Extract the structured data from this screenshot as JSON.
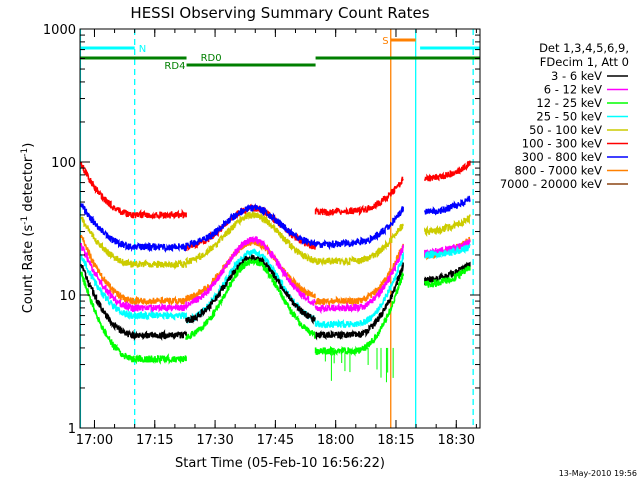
{
  "chart_data": {
    "type": "line",
    "title": "HESSI Observing Summary Count Rates",
    "xlabel": "Start Time (05-Feb-10 16:56:22)",
    "ylabel_main": "Count Rate (s",
    "ylabel_sup1": "-1",
    "ylabel_mid": " detector",
    "ylabel_sup2": "-1",
    "ylabel_end": ")",
    "yscale": "log",
    "ylim": [
      1,
      1000
    ],
    "xlim_minutes_after_start": [
      0,
      99.5
    ],
    "xticks": [
      {
        "label": "17:00",
        "t": 3.6
      },
      {
        "label": "17:15",
        "t": 18.6
      },
      {
        "label": "17:30",
        "t": 33.6
      },
      {
        "label": "17:45",
        "t": 48.6
      },
      {
        "label": "18:00",
        "t": 63.6
      },
      {
        "label": "18:15",
        "t": 78.6
      },
      {
        "label": "18:30",
        "t": 93.6
      }
    ],
    "yticks": [
      {
        "label": "1",
        "v": 1
      },
      {
        "label": "10",
        "v": 10
      },
      {
        "label": "100",
        "v": 100
      },
      {
        "label": "1000",
        "v": 1000
      }
    ],
    "legend_header": [
      "Det 1,3,4,5,6,9,",
      "FDecim 1, Att 0"
    ],
    "legend_position": "top-right",
    "series": [
      {
        "name": "3 - 6 keV",
        "color": "#000000"
      },
      {
        "name": "6 - 12 keV",
        "color": "#ff00ff"
      },
      {
        "name": "12 - 25 keV",
        "color": "#00ff00"
      },
      {
        "name": "25 - 50 keV",
        "color": "#00ffff"
      },
      {
        "name": "50 - 100 keV",
        "color": "#cccc00"
      },
      {
        "name": "100 - 300 keV",
        "color": "#ff0000"
      },
      {
        "name": "300 - 800 keV",
        "color": "#0000ff"
      },
      {
        "name": "800 - 7000 keV",
        "color": "#ff8000"
      },
      {
        "name": "7000 - 20000 keV",
        "color": "#8b4513"
      }
    ],
    "flags": [
      {
        "label": "N",
        "color": "#00ffff",
        "segments": [
          [
            0,
            13.6
          ],
          [
            84.6,
            99.5
          ]
        ]
      },
      {
        "label": "S",
        "color": "#ff8000",
        "segments": [
          [
            77.3,
            83.5
          ]
        ]
      },
      {
        "label": "RD0",
        "color": "#007f00",
        "segments": [
          [
            0,
            26.5
          ],
          [
            58.6,
            99.5
          ]
        ]
      },
      {
        "label": "RD4",
        "color": "#007f00",
        "segments": [
          [
            26.5,
            58.6
          ]
        ]
      }
    ],
    "markers": [
      {
        "t": 13.6,
        "color": "#00ffff",
        "style": "dashed"
      },
      {
        "t": 77.3,
        "color": "#ff8000",
        "style": "solid"
      },
      {
        "t": 83.5,
        "color": "#00ffff",
        "style": "solid"
      },
      {
        "t": 97.8,
        "color": "#00ffff",
        "style": "dashed"
      },
      {
        "t": 0.1,
        "color": "#00ffff",
        "style": "solid"
      }
    ],
    "bands": [
      {
        "name": "100 - 300 keV",
        "phases": [
          {
            "t0": 0.3,
            "t1": 13.6,
            "v0": 95,
            "v1": 40
          },
          {
            "t0": 13.6,
            "t1": 26.4,
            "v0": 40,
            "v1": 40
          },
          {
            "t0": 26.4,
            "t1": 58.6,
            "shape": "hump",
            "base": 22,
            "peak": 45,
            "peakT": 43
          },
          {
            "t0": 58.6,
            "t1": 68.5,
            "v0": 42,
            "v1": 43
          },
          {
            "t0": 68.5,
            "t1": 80.5,
            "v0": 43,
            "v1": 75
          },
          {
            "t0": 85.8,
            "t1": 97.0,
            "v0": 75,
            "v1": 97
          }
        ]
      },
      {
        "name": "300 - 800 keV",
        "phases": [
          {
            "t0": 0.3,
            "t1": 13.6,
            "v0": 48,
            "v1": 23
          },
          {
            "t0": 13.6,
            "t1": 26.4,
            "v0": 23,
            "v1": 23
          },
          {
            "t0": 26.4,
            "t1": 58.6,
            "shape": "hump",
            "base": 23,
            "peak": 45,
            "peakT": 43
          },
          {
            "t0": 58.6,
            "t1": 68.5,
            "v0": 24,
            "v1": 25
          },
          {
            "t0": 68.5,
            "t1": 80.5,
            "v0": 25,
            "v1": 45
          },
          {
            "t0": 85.8,
            "t1": 97.0,
            "v0": 42,
            "v1": 53
          }
        ]
      },
      {
        "name": "50 - 100 keV",
        "phases": [
          {
            "t0": 0.3,
            "t1": 13.6,
            "v0": 38,
            "v1": 17
          },
          {
            "t0": 13.6,
            "t1": 26.4,
            "v0": 17,
            "v1": 17
          },
          {
            "t0": 26.4,
            "t1": 58.6,
            "shape": "hump",
            "base": 17,
            "peak": 40,
            "peakT": 43
          },
          {
            "t0": 58.6,
            "t1": 68.5,
            "v0": 18,
            "v1": 18
          },
          {
            "t0": 68.5,
            "t1": 80.5,
            "v0": 18,
            "v1": 35
          },
          {
            "t0": 85.8,
            "t1": 97.0,
            "v0": 30,
            "v1": 38
          }
        ]
      },
      {
        "name": "800 - 7000 keV",
        "phases": [
          {
            "t0": 0.3,
            "t1": 13.6,
            "v0": 28,
            "v1": 9
          },
          {
            "t0": 13.6,
            "t1": 26.4,
            "v0": 9,
            "v1": 9
          },
          {
            "t0": 26.4,
            "t1": 58.6,
            "shape": "hump",
            "base": 9,
            "peak": 25,
            "peakT": 43
          },
          {
            "t0": 58.6,
            "t1": 68.5,
            "v0": 9,
            "v1": 9
          },
          {
            "t0": 68.5,
            "t1": 80.5,
            "v0": 9,
            "v1": 24
          },
          {
            "t0": 85.8,
            "t1": 97.0,
            "v0": 20,
            "v1": 26
          }
        ]
      },
      {
        "name": "6 - 12 keV",
        "phases": [
          {
            "t0": 0.3,
            "t1": 13.6,
            "v0": 24,
            "v1": 8
          },
          {
            "t0": 13.6,
            "t1": 26.4,
            "v0": 8,
            "v1": 8
          },
          {
            "t0": 26.4,
            "t1": 58.6,
            "shape": "hump",
            "base": 8,
            "peak": 26,
            "peakT": 43
          },
          {
            "t0": 58.6,
            "t1": 68.5,
            "v0": 8,
            "v1": 8
          },
          {
            "t0": 68.5,
            "t1": 80.5,
            "v0": 8,
            "v1": 23
          },
          {
            "t0": 85.8,
            "t1": 97.0,
            "v0": 21,
            "v1": 25
          }
        ]
      },
      {
        "name": "25 - 50 keV",
        "phases": [
          {
            "t0": 0.3,
            "t1": 13.6,
            "v0": 20,
            "v1": 7
          },
          {
            "t0": 13.6,
            "t1": 26.4,
            "v0": 7,
            "v1": 7
          },
          {
            "t0": 26.4,
            "t1": 58.6,
            "shape": "hump",
            "base": 6,
            "peak": 21,
            "peakT": 43
          },
          {
            "t0": 58.6,
            "t1": 68.5,
            "v0": 6,
            "v1": 6
          },
          {
            "t0": 68.5,
            "t1": 80.5,
            "v0": 6,
            "v1": 20
          },
          {
            "t0": 85.8,
            "t1": 97.0,
            "v0": 20,
            "v1": 23
          }
        ]
      },
      {
        "name": "3 - 6 keV",
        "phases": [
          {
            "t0": 0.3,
            "t1": 13.6,
            "v0": 17,
            "v1": 5
          },
          {
            "t0": 13.6,
            "t1": 26.4,
            "v0": 5,
            "v1": 5
          },
          {
            "t0": 26.4,
            "t1": 58.6,
            "shape": "hump",
            "base": 6,
            "peak": 19,
            "peakT": 43
          },
          {
            "t0": 58.6,
            "t1": 68.5,
            "v0": 5,
            "v1": 5
          },
          {
            "t0": 68.5,
            "t1": 80.5,
            "v0": 5,
            "v1": 17
          },
          {
            "t0": 85.8,
            "t1": 97.0,
            "v0": 13,
            "v1": 17
          }
        ]
      },
      {
        "name": "12 - 25 keV",
        "phases": [
          {
            "t0": 0.3,
            "t1": 13.6,
            "v0": 15,
            "v1": 3.3
          },
          {
            "t0": 13.6,
            "t1": 26.4,
            "v0": 3.3,
            "v1": 3.3
          },
          {
            "t0": 26.4,
            "t1": 58.6,
            "shape": "hump",
            "base": 4.5,
            "peak": 18,
            "peakT": 43
          },
          {
            "t0": 58.6,
            "t1": 68.5,
            "v0": 3.8,
            "v1": 3.8
          },
          {
            "t0": 68.5,
            "t1": 80.5,
            "v0": 3.8,
            "v1": 15
          },
          {
            "t0": 85.8,
            "t1": 97.0,
            "v0": 12,
            "v1": 16
          }
        ]
      }
    ]
  },
  "timestamp": "13-May-2010 19:56"
}
